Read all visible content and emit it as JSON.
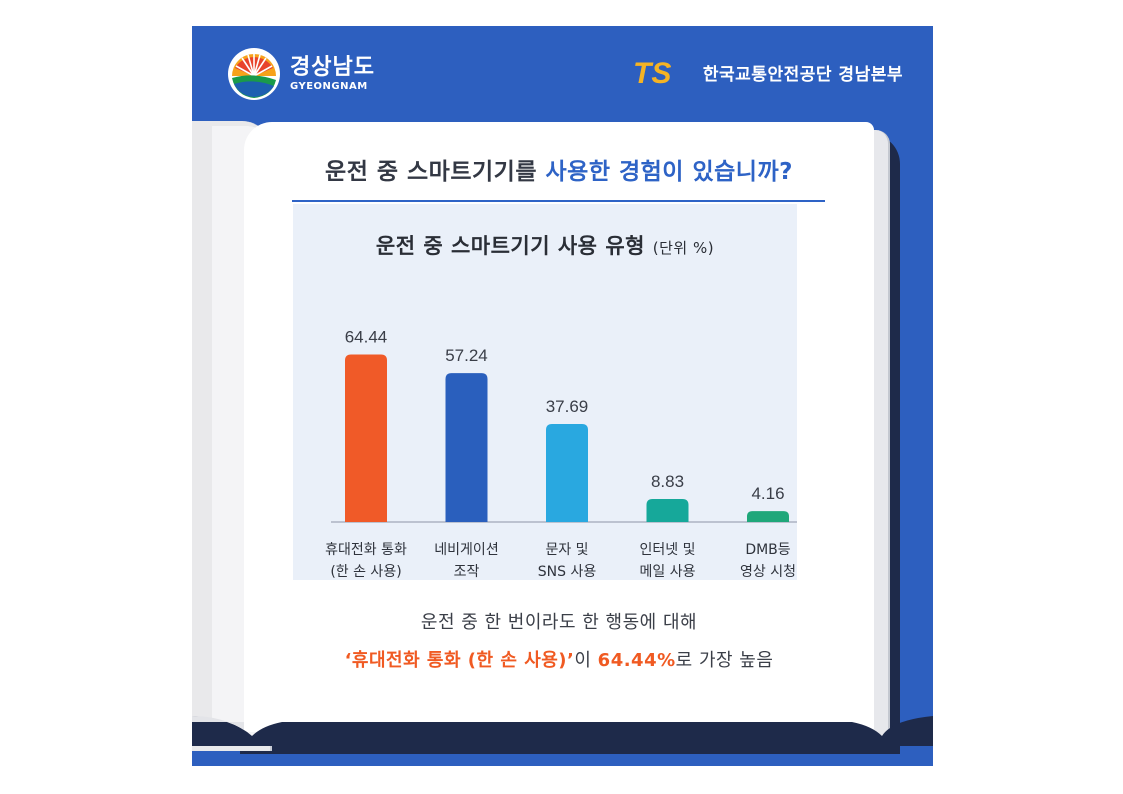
{
  "header": {
    "logo_ko": "경상남도",
    "logo_en": "GYEONGNAM",
    "org_mark": "TS",
    "org_name": "한국교통안전공단  경남본부"
  },
  "question": {
    "prefix": "운전 중 스마트기기를 ",
    "highlight": "사용한 경험이 있습니까?"
  },
  "colors": {
    "background": "#2d5fbf",
    "accent_blue": "#2e63c6",
    "highlight_orange": "#f05a22"
  },
  "chart_data": {
    "type": "bar",
    "title": "운전 중 스마트기기 사용 유형",
    "unit": "(단위 %)",
    "categories": [
      [
        "휴대전화 통화",
        "(한 손 사용)"
      ],
      [
        "네비게이션",
        "조작"
      ],
      [
        "문자 및",
        "SNS 사용"
      ],
      [
        "인터넷 및",
        "메일 사용"
      ],
      [
        "DMB등",
        "영상 시청"
      ]
    ],
    "values": [
      64.44,
      57.24,
      37.69,
      8.83,
      4.16
    ],
    "value_labels": [
      "64.44",
      "57.24",
      "37.69",
      "8.83",
      "4.16"
    ],
    "bar_colors": [
      "#f05a28",
      "#2a5fbd",
      "#29a8e0",
      "#16a89a",
      "#1fa77a"
    ],
    "ylim": [
      0,
      70
    ],
    "grid": false,
    "legend": "none"
  },
  "footer": {
    "line1": "운전 중 한 번이라도 한 행동에 대해",
    "line2_hl1": "‘휴대전화 통화 (한 손 사용)’",
    "line2_mid": "이 ",
    "line2_hl2": "64.44%",
    "line2_end": "로 가장 높음"
  }
}
